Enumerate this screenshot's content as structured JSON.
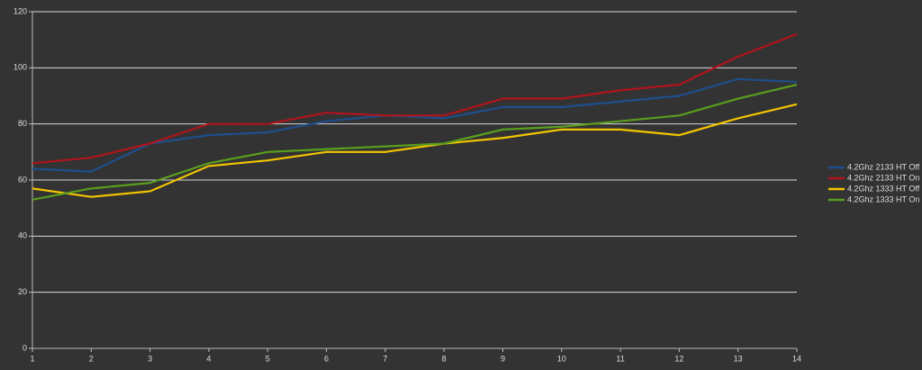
{
  "chart_data": {
    "type": "line",
    "x": [
      1,
      2,
      3,
      4,
      5,
      6,
      7,
      8,
      9,
      10,
      11,
      12,
      13,
      14
    ],
    "xlim": [
      1,
      14
    ],
    "xticks": [
      1,
      2,
      3,
      4,
      5,
      6,
      7,
      8,
      9,
      10,
      11,
      12,
      13,
      14
    ],
    "ylim": [
      0,
      120
    ],
    "yticks": [
      0,
      20,
      40,
      60,
      80,
      100,
      120
    ],
    "grid": true,
    "legend": "right",
    "series": [
      {
        "name": "4.2Ghz 2133 HT Off",
        "color": "#1f4e8c",
        "values": [
          64,
          63,
          73,
          76,
          77,
          81,
          83,
          82,
          86,
          86,
          88,
          90,
          96,
          95
        ]
      },
      {
        "name": "4.2Ghz 2133 HT On",
        "color": "#b0141c",
        "values": [
          66,
          68,
          73,
          80,
          80,
          84,
          83,
          83,
          89,
          89,
          92,
          94,
          104,
          112
        ]
      },
      {
        "name": "4.2Ghz 1333 HT Off",
        "color": "#f2c500",
        "values": [
          57,
          54,
          56,
          65,
          67,
          70,
          70,
          73,
          75,
          78,
          78,
          76,
          82,
          87
        ]
      },
      {
        "name": "4.2Ghz 1333 HT On",
        "color": "#5a9e1e",
        "values": [
          53,
          57,
          59,
          66,
          70,
          71,
          72,
          73,
          78,
          79,
          81,
          83,
          89,
          94
        ]
      }
    ]
  }
}
